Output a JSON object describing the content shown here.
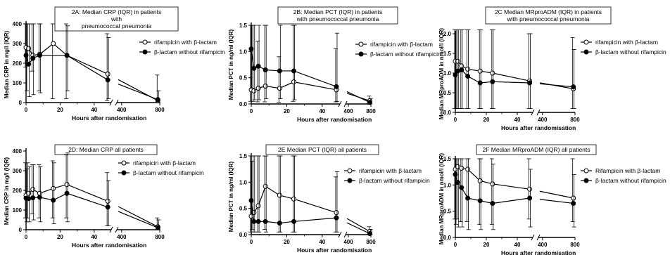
{
  "legend_symbols": {
    "rif": "open-circle-marker",
    "norif": "filled-circle-marker"
  },
  "chart_data": [
    {
      "id": "A",
      "type": "line",
      "title_lines": [
        "2A: Median CRP (IQR) in patients",
        "with",
        "pneumococcal pneumonia"
      ],
      "ylabel": "Median CRP in mg/l (IQR)",
      "xlabel": "Hours after randomisation",
      "ylim": [
        0,
        400
      ],
      "yticks": [
        "0",
        "100",
        "200",
        "300",
        "400"
      ],
      "xticks": [
        "0",
        "20",
        "40",
        "400",
        "800"
      ],
      "legend": [
        "rifampicin with β-lactam",
        "β-lactam without rifampicin"
      ],
      "series": [
        {
          "marker": "open",
          "x": [
            0,
            1.5,
            4,
            8,
            16,
            24,
            48,
            780
          ],
          "y": [
            280,
            275,
            240,
            245,
            300,
            240,
            145,
            10
          ],
          "q1": [
            180,
            200,
            160,
            60,
            20,
            20,
            10,
            0
          ],
          "q3": [
            400,
            400,
            400,
            400,
            400,
            400,
            350,
            140
          ]
        },
        {
          "marker": "filled",
          "x": [
            0,
            1.5,
            4,
            8,
            24,
            48,
            780
          ],
          "y": [
            240,
            195,
            225,
            240,
            240,
            115,
            15
          ],
          "q1": [
            60,
            30,
            40,
            50,
            60,
            20,
            0
          ],
          "q3": [
            400,
            400,
            400,
            400,
            390,
            330,
            60
          ]
        }
      ]
    },
    {
      "id": "B",
      "type": "line",
      "title_lines": [
        "2B: Median PCT (IQR) in patients",
        "with pneumococcal pneumonia"
      ],
      "ylabel": "Median PCT in ng/ml (IQR)",
      "xlabel": "Hours after randomisation",
      "ylim": [
        0,
        1.5
      ],
      "yticks": [
        "0.0",
        "0.5",
        "1.0",
        "1.5"
      ],
      "xticks": [
        "0",
        "20",
        "40",
        "400",
        "800"
      ],
      "legend": [
        "rifampicin with β-lactam",
        "β-lactam without rifampicin"
      ],
      "series": [
        {
          "marker": "open",
          "x": [
            0,
            1.5,
            4,
            8,
            16,
            24,
            48,
            780
          ],
          "y": [
            0.27,
            0.25,
            0.3,
            0.34,
            0.3,
            0.42,
            0.27,
            0.06
          ],
          "q1": [
            0.05,
            0.05,
            0.04,
            0.04,
            0.03,
            0.05,
            0.04,
            0.0
          ],
          "q3": [
            1.5,
            1.5,
            1.2,
            1.5,
            0.9,
            1.5,
            1.05,
            0.15
          ]
        },
        {
          "marker": "filled",
          "x": [
            0,
            1.5,
            4,
            8,
            16,
            24,
            48,
            780
          ],
          "y": [
            1.05,
            0.68,
            0.72,
            0.65,
            0.63,
            0.63,
            0.33,
            0.03
          ],
          "q1": [
            0.3,
            0.08,
            0.08,
            0.1,
            0.1,
            0.08,
            0.05,
            0.0
          ],
          "q3": [
            1.5,
            1.5,
            1.5,
            1.5,
            1.5,
            1.5,
            1.35,
            0.1
          ]
        }
      ]
    },
    {
      "id": "C",
      "type": "line",
      "title_lines": [
        "2C Median MRproADM (IQR) in patients",
        "with pneumococcal pneumonia"
      ],
      "ylabel": "Median MRproADM in nmol/l (IQR)",
      "xlabel": "Hours after randomisation",
      "ylim": [
        0,
        2.0
      ],
      "yticks": [
        "0.0",
        "0.5",
        "1.0",
        "1.5",
        "2.0"
      ],
      "ytick_cramped_zero": true,
      "xticks": [
        "0",
        "20",
        "40",
        "400",
        "800"
      ],
      "legend": [
        "rifampicin with β-lactam",
        "β-lactam without rifampicin"
      ],
      "series": [
        {
          "marker": "open",
          "x": [
            0,
            1.5,
            4,
            8,
            16,
            24,
            48,
            780
          ],
          "y": [
            1.3,
            1.3,
            1.18,
            1.1,
            1.05,
            1.0,
            0.8,
            0.6
          ],
          "q1": [
            0.1,
            0.1,
            0.1,
            0.1,
            0.1,
            0.1,
            0.1,
            0.1
          ],
          "q3": [
            2.1,
            2.1,
            2.1,
            2.1,
            2.1,
            2.1,
            2.0,
            1.9
          ]
        },
        {
          "marker": "filled",
          "x": [
            0,
            1.5,
            4,
            8,
            16,
            24,
            48,
            780
          ],
          "y": [
            0.95,
            1.05,
            1.08,
            0.92,
            0.75,
            0.78,
            0.75,
            0.65
          ],
          "q1": [
            0.1,
            0.1,
            0.1,
            0.1,
            0.1,
            0.1,
            0.1,
            0.1
          ],
          "q3": [
            2.1,
            2.1,
            2.1,
            2.1,
            2.1,
            2.1,
            2.0,
            1.6
          ]
        }
      ]
    },
    {
      "id": "D",
      "type": "line",
      "title_lines": [
        "2D: Median CRP all patients"
      ],
      "ylabel": "Median CRP in mg/l (IQR)",
      "xlabel": "Hours after randomisation",
      "ylim": [
        0,
        400
      ],
      "yticks": [
        "0",
        "100",
        "200",
        "300",
        "400"
      ],
      "xticks": [
        "0",
        "20",
        "40",
        "400",
        "800"
      ],
      "legend": [
        "rifampicin with β-lactam",
        "β-lactam without rifampicin"
      ],
      "series": [
        {
          "marker": "open",
          "x": [
            0,
            1.5,
            4,
            8,
            16,
            24,
            48,
            780
          ],
          "y": [
            175,
            185,
            205,
            185,
            210,
            230,
            145,
            15
          ],
          "q1": [
            60,
            60,
            80,
            60,
            60,
            60,
            20,
            0
          ],
          "q3": [
            340,
            340,
            330,
            330,
            350,
            380,
            290,
            60
          ]
        },
        {
          "marker": "filled",
          "x": [
            0,
            1.5,
            4,
            8,
            16,
            24,
            48,
            780
          ],
          "y": [
            160,
            158,
            162,
            165,
            150,
            185,
            115,
            10
          ],
          "q1": [
            40,
            40,
            50,
            40,
            30,
            40,
            20,
            0
          ],
          "q3": [
            310,
            320,
            330,
            320,
            340,
            390,
            250,
            50
          ]
        }
      ]
    },
    {
      "id": "E",
      "type": "line",
      "title_lines": [
        "2E Median PCT (IQR) all patients"
      ],
      "ylabel": "Median PCT in ng/ml (IQR)",
      "xlabel": "Hours after randomisation",
      "ylim": [
        0,
        1.5
      ],
      "yticks": [
        "0.0",
        "0.5",
        "1.0",
        "1.5"
      ],
      "xticks": [
        "0",
        "20",
        "40",
        "400",
        "800"
      ],
      "legend": [
        "rifampicin with β-lactam",
        "β-lactam without rifampicin"
      ],
      "series": [
        {
          "marker": "open",
          "x": [
            0,
            1.5,
            4,
            8,
            16,
            24,
            48,
            780
          ],
          "y": [
            0.35,
            0.42,
            0.55,
            0.92,
            0.75,
            0.68,
            0.42,
            0.06
          ],
          "q1": [
            0.05,
            0.05,
            0.05,
            0.1,
            0.05,
            0.05,
            0.05,
            0.0
          ],
          "q3": [
            1.5,
            1.5,
            1.5,
            1.5,
            1.5,
            1.5,
            1.1,
            0.15
          ]
        },
        {
          "marker": "filled",
          "x": [
            0,
            1.5,
            4,
            8,
            16,
            24,
            48,
            780
          ],
          "y": [
            0.65,
            0.25,
            0.25,
            0.25,
            0.22,
            0.25,
            0.32,
            0.02
          ],
          "q1": [
            0.1,
            0.05,
            0.05,
            0.05,
            0.05,
            0.05,
            0.05,
            0.0
          ],
          "q3": [
            1.4,
            1.5,
            1.5,
            1.5,
            1.5,
            1.5,
            1.2,
            0.1
          ]
        }
      ]
    },
    {
      "id": "F",
      "type": "line",
      "title_lines": [
        "2F Median MRproADM (IQR) all patients"
      ],
      "ylabel": "Median MRproADM in nmol/l (IQR)",
      "xlabel": "Hours after randomisation",
      "ylim": [
        0,
        1.5
      ],
      "yticks": [
        "0.0",
        "0.5",
        "1.0",
        "1.5"
      ],
      "xticks": [
        "0",
        "20",
        "40",
        "400",
        "800"
      ],
      "legend": [
        "Rifampicin with β-lactam",
        "β-lactam without rifampicin"
      ],
      "series": [
        {
          "marker": "open",
          "x": [
            0,
            1.5,
            4,
            8,
            16,
            24,
            48,
            780
          ],
          "y": [
            1.3,
            1.35,
            1.32,
            1.3,
            1.08,
            1.02,
            0.92,
            0.75
          ],
          "q1": [
            0.35,
            0.35,
            0.3,
            0.3,
            0.25,
            0.25,
            0.35,
            0.3
          ],
          "q3": [
            1.5,
            1.5,
            1.5,
            1.5,
            1.5,
            1.5,
            1.5,
            1.5
          ]
        },
        {
          "marker": "filled",
          "x": [
            0,
            1.5,
            4,
            8,
            16,
            24,
            48,
            780
          ],
          "y": [
            1.2,
            1.05,
            0.95,
            0.75,
            0.7,
            0.65,
            0.75,
            0.65
          ],
          "q1": [
            0.25,
            0.2,
            0.2,
            0.15,
            0.15,
            0.15,
            0.2,
            0.2
          ],
          "q3": [
            1.5,
            1.5,
            1.5,
            1.5,
            1.5,
            1.4,
            1.3,
            1.2
          ]
        }
      ]
    }
  ]
}
